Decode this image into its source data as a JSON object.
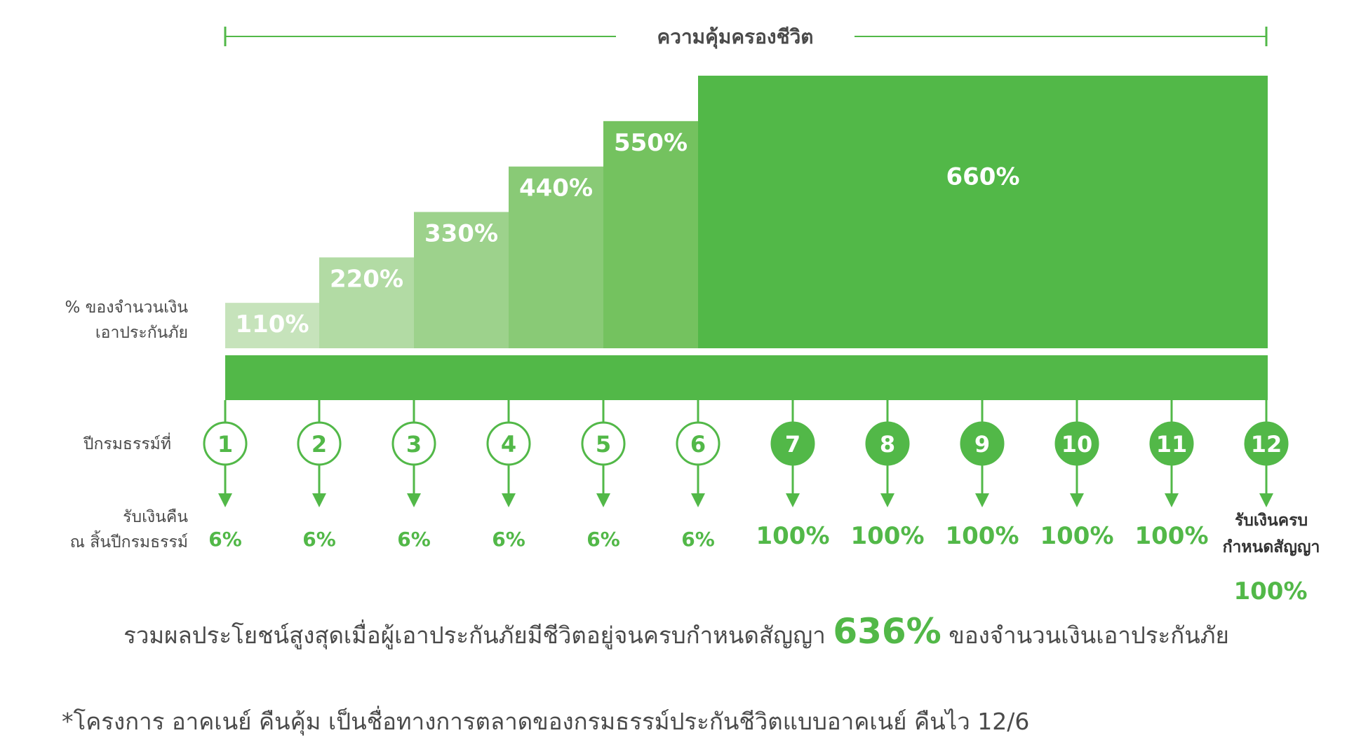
{
  "chart_data": {
    "type": "bar",
    "title": "ความคุ้มครองชีวิต",
    "ylabel": "% ของจำนวนเงินเอาประกันภัย",
    "ylabel_lines": [
      "% ของจำนวนเงิน",
      "เอาประกันภัย"
    ],
    "coverage": [
      {
        "years": [
          1,
          1
        ],
        "value": 110,
        "label": "110%",
        "color": "#c6e3bb"
      },
      {
        "years": [
          2,
          2
        ],
        "value": 220,
        "label": "220%",
        "color": "#b2dba4"
      },
      {
        "years": [
          3,
          3
        ],
        "value": 330,
        "label": "330%",
        "color": "#9dd28c"
      },
      {
        "years": [
          4,
          4
        ],
        "value": 440,
        "label": "440%",
        "color": "#89ca76"
      },
      {
        "years": [
          5,
          5
        ],
        "value": 550,
        "label": "550%",
        "color": "#74c25f"
      },
      {
        "years": [
          6,
          12
        ],
        "value": 660,
        "label": "660%",
        "color": "#52b848"
      }
    ],
    "policy_year_label": "ปีกรมธรรม์ที่",
    "policy_years": [
      "1",
      "2",
      "3",
      "4",
      "5",
      "6",
      "7",
      "8",
      "9",
      "10",
      "11",
      "12"
    ],
    "payback_label_lines": [
      "รับเงินคืน",
      "ณ สิ้นปีกรมธรรม์"
    ],
    "payback": [
      "6%",
      "6%",
      "6%",
      "6%",
      "6%",
      "6%",
      "100%",
      "100%",
      "100%",
      "100%",
      "100%",
      "100%"
    ],
    "payback_values": [
      6,
      6,
      6,
      6,
      6,
      6,
      100,
      100,
      100,
      100,
      100,
      100
    ],
    "maturity_label_lines": [
      "รับเงินครบ",
      "กำหนดสัญญา"
    ],
    "filled_year_from": 7
  },
  "summary": {
    "prefix": "รวมผลประโยชน์สูงสุดเมื่อผู้เอาประกันภัยมีชีวิตอยู่จนครบกำหนดสัญญา",
    "value": "636%",
    "suffix": "ของจำนวนเงินเอาประกันภัย"
  },
  "footnote": "*โครงการ อาคเนย์ คืนคุ้ม เป็นชื่อทางการตลาดของกรมธรรม์ประกันชีวิตแบบอาคเนย์ คืนไว 12/6",
  "colors": {
    "accent": "#52b848",
    "text": "#4a4a4a",
    "dark_text": "#333333"
  }
}
